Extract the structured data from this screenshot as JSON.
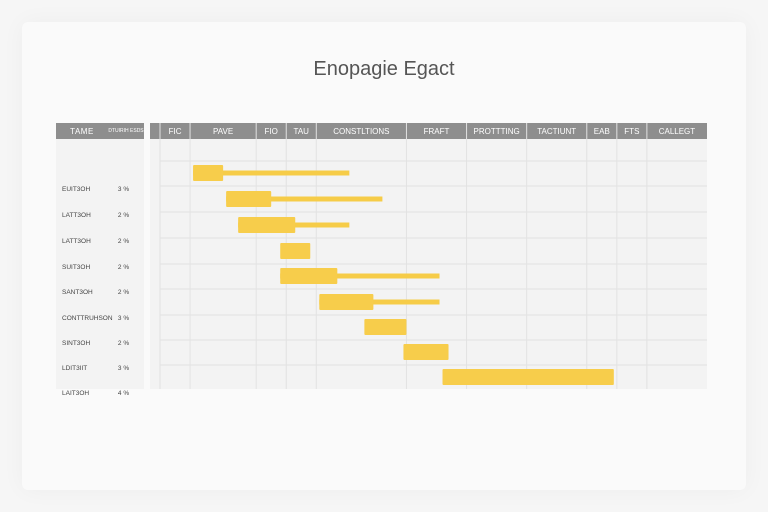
{
  "title": "Enopagie Egact",
  "table": {
    "headers": [
      "TAME",
      "DTUIRIH ESDS"
    ],
    "rows": [
      {
        "name": "EUIT3OH",
        "pct": "3 %"
      },
      {
        "name": "LATT3OH",
        "pct": "2 %"
      },
      {
        "name": "LATT3OH",
        "pct": "2 %"
      },
      {
        "name": "SUIT3OH",
        "pct": "2 %"
      },
      {
        "name": "SANT3OH",
        "pct": "2 %"
      },
      {
        "name": "CONTTRUHSON",
        "pct": "3 %"
      },
      {
        "name": "SINT3OH",
        "pct": "2 %"
      },
      {
        "name": "LDIT3IIT",
        "pct": "3 %"
      },
      {
        "name": "LAIT3OH",
        "pct": "4 %"
      }
    ]
  },
  "colors": {
    "header": "#8e8e8e",
    "bar": "#f7cd4b",
    "bar_thin": "#f6cc48",
    "grid": "#e2e2e2"
  },
  "chart_data": {
    "type": "bar",
    "columns": [
      "FIC",
      "PAVE",
      "FIO",
      "TAU",
      "CONSTLTIONS",
      "FRAFT",
      "PROTTTING",
      "TACTIUNT",
      "EAB",
      "FTS",
      "CALLEGT"
    ],
    "column_weights": [
      1,
      2.2,
      1,
      1,
      3,
      2,
      2,
      2,
      1,
      1,
      2
    ],
    "x_range": [
      0,
      18.2
    ],
    "tasks": [
      {
        "name": "EUIT3OH",
        "start": 1.1,
        "end": 2.1,
        "thin_start": 1.1,
        "thin_end": 6.3
      },
      {
        "name": "LATT3OH",
        "start": 2.2,
        "end": 3.7,
        "thin_start": 2.2,
        "thin_end": 7.4
      },
      {
        "name": "LATT3OH",
        "start": 2.6,
        "end": 4.5,
        "thin_start": 2.6,
        "thin_end": 6.3
      },
      {
        "name": "SUIT3OH",
        "start": 4.0,
        "end": 5.0,
        "thin_start": null,
        "thin_end": null
      },
      {
        "name": "SANT3OH",
        "start": 4.0,
        "end": 5.9,
        "thin_start": 4.0,
        "thin_end": 9.3
      },
      {
        "name": "CONTTRUHSON",
        "start": 5.3,
        "end": 7.1,
        "thin_start": 5.3,
        "thin_end": 9.3
      },
      {
        "name": "SINT3OH",
        "start": 6.8,
        "end": 8.2,
        "thin_start": null,
        "thin_end": null
      },
      {
        "name": "LDIT3IIT",
        "start": 8.1,
        "end": 9.6,
        "thin_start": null,
        "thin_end": null
      },
      {
        "name": "LAIT3OH",
        "start": 9.4,
        "end": 15.1,
        "thin_start": null,
        "thin_end": null
      }
    ]
  }
}
